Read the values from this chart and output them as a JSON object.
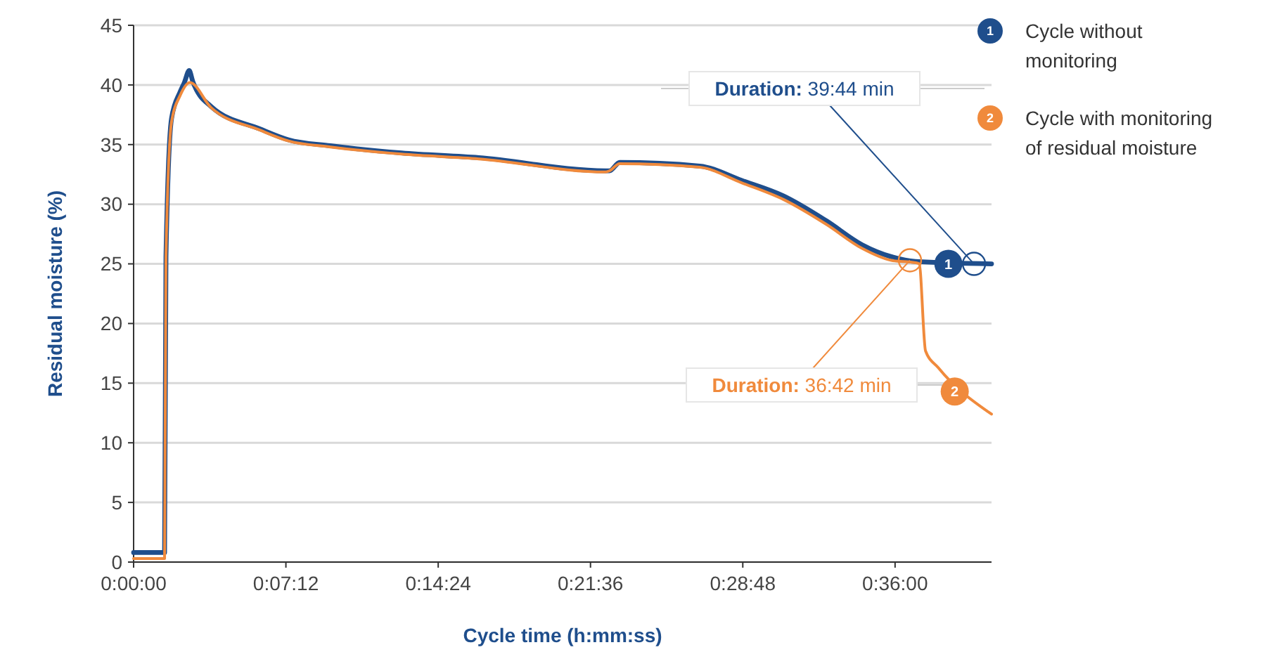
{
  "chart_data": {
    "type": "line",
    "xlabel": "Cycle time (h:mm:ss)",
    "ylabel": "Residual moisture  (%)",
    "xlim": [
      0,
      0.676
    ],
    "ylim": [
      0,
      45
    ],
    "xticks": [
      {
        "value": 0,
        "label": "0:00:00"
      },
      {
        "value": 0.12,
        "label": "0:07:12"
      },
      {
        "value": 0.24,
        "label": "0:14:24"
      },
      {
        "value": 0.36,
        "label": "0:21:36"
      },
      {
        "value": 0.48,
        "label": "0:28:48"
      },
      {
        "value": 0.6,
        "label": "0:36:00"
      }
    ],
    "yticks": [
      0,
      5,
      10,
      15,
      20,
      25,
      30,
      35,
      40,
      45
    ],
    "grid": "y",
    "legend": "right",
    "marker": "none",
    "line_style": "solid",
    "series": [
      {
        "name": "Cycle without monitoring",
        "color": "#1f4e8c",
        "x": [
          0,
          0.0244,
          0.0255,
          0.0299,
          0.0366,
          0.04,
          0.0438,
          0.0466,
          0.061,
          0.0998,
          0.122,
          0.155,
          0.211,
          0.272,
          0.372,
          0.375,
          0.383,
          0.446,
          0.479,
          0.512,
          0.546,
          0.574,
          0.597,
          0.616,
          0.676
        ],
        "values": [
          0.8,
          0.8,
          25.6,
          37.2,
          39.4,
          40.2,
          41.2,
          40.3,
          38.2,
          36.3,
          35.4,
          34.9,
          34.3,
          33.9,
          32.8,
          32.8,
          33.5,
          33.2,
          32.0,
          30.7,
          28.6,
          26.6,
          25.6,
          25.2,
          25.0
        ]
      },
      {
        "name": "Cycle with monitoring of residual moisture",
        "color": "#f08a3c",
        "x": [
          0,
          0.0244,
          0.0255,
          0.0299,
          0.0366,
          0.0444,
          0.061,
          0.0998,
          0.122,
          0.155,
          0.211,
          0.272,
          0.372,
          0.375,
          0.383,
          0.446,
          0.479,
          0.512,
          0.546,
          0.574,
          0.597,
          0.616,
          0.619,
          0.624,
          0.634,
          0.676
        ],
        "values": [
          0.3,
          0.3,
          25.6,
          36.9,
          39.1,
          40.2,
          38.1,
          36.2,
          35.3,
          34.8,
          34.2,
          33.8,
          32.7,
          32.8,
          33.4,
          33.1,
          31.8,
          30.4,
          28.3,
          26.3,
          25.3,
          25.1,
          25.0,
          17.7,
          16.3,
          12.4
        ]
      }
    ],
    "annotations": [
      {
        "text": "Duration: 39:44 min",
        "x": 0.6622,
        "y": 25
      },
      {
        "text": "Duration: 36:42 min",
        "x": 0.6117,
        "y": 25.3
      },
      {
        "text": "1",
        "x": 0.642,
        "y": 25
      },
      {
        "text": "2",
        "x": 0.647,
        "y": 14.3
      }
    ]
  }
}
